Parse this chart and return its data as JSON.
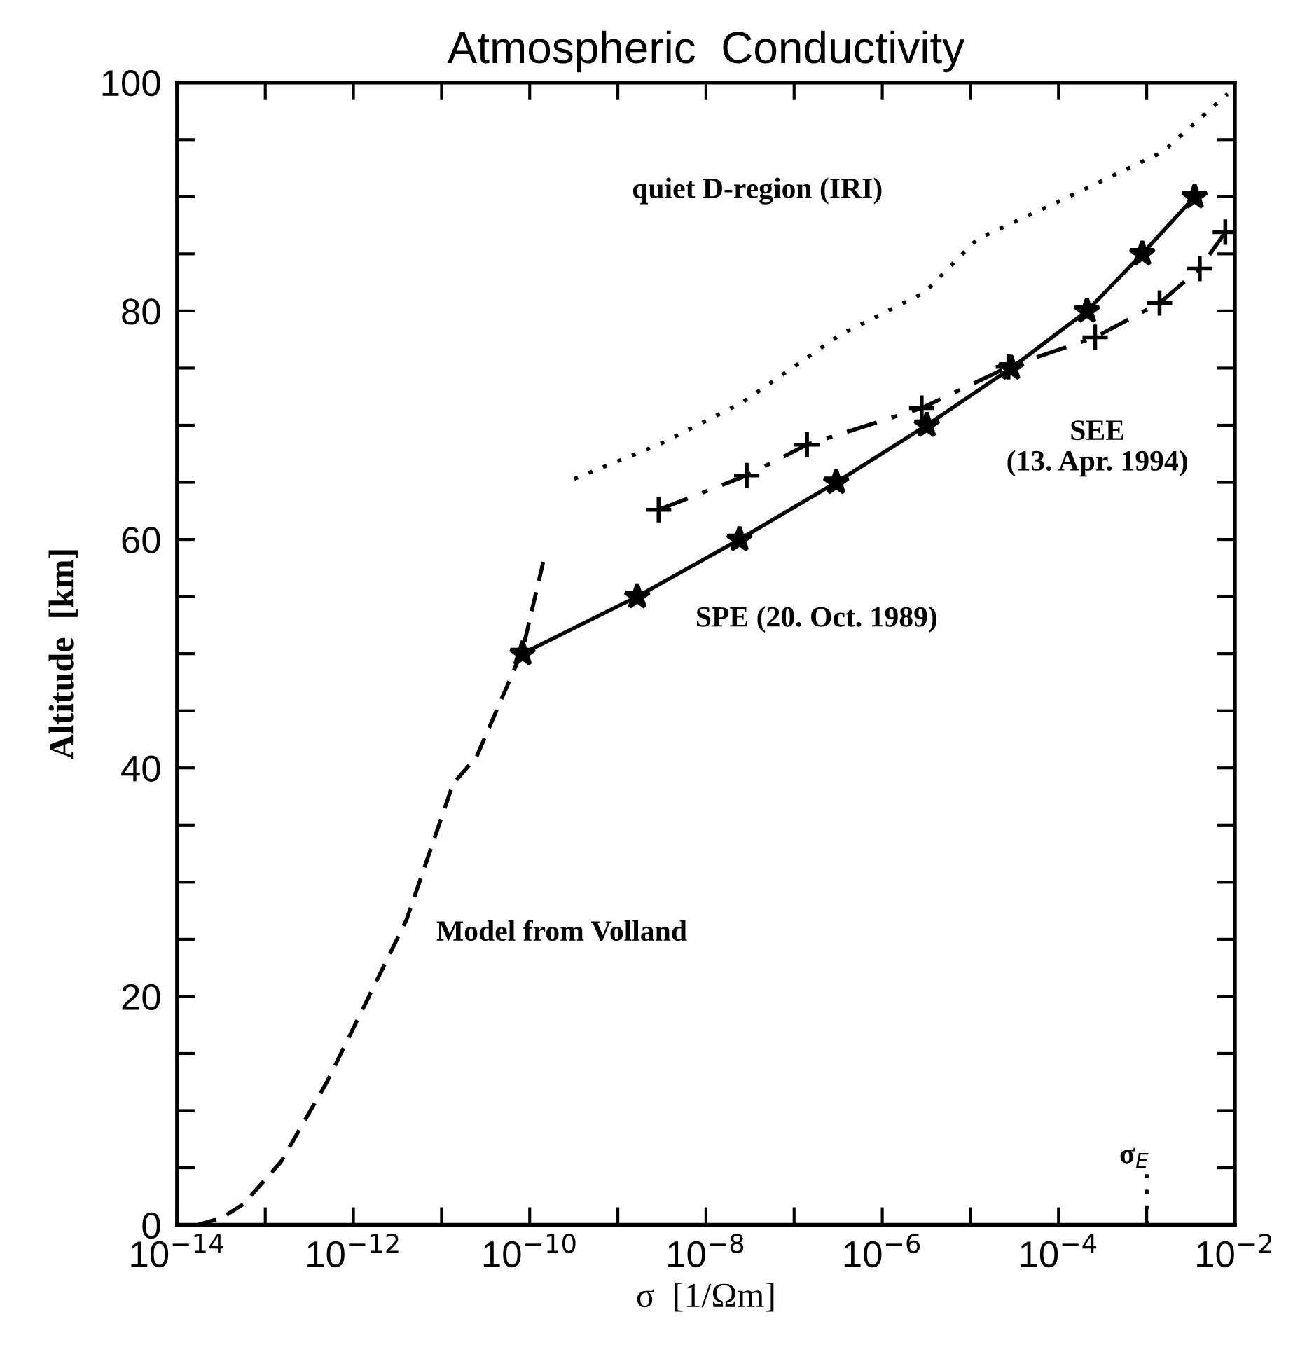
{
  "chart_data": {
    "type": "line",
    "title": "Atmospheric  Conductivity",
    "xlabel": "σ  [1/Ωm]",
    "ylabel": "Altitude  [km]",
    "log": "x",
    "xlim": [
      1e-14,
      0.01
    ],
    "ylim": [
      0,
      100
    ],
    "xticks": [
      {
        "value": 1e-14,
        "label": "10$^{−14}$"
      },
      {
        "value": 1e-13,
        "label": null
      },
      {
        "value": 1e-12,
        "label": "10$^{−12}$"
      },
      {
        "value": 1e-11,
        "label": null
      },
      {
        "value": 1e-10,
        "label": "10$^{−10}$"
      },
      {
        "value": 1e-09,
        "label": null
      },
      {
        "value": 1e-08,
        "label": "10$^{−8}$"
      },
      {
        "value": 1e-07,
        "label": null
      },
      {
        "value": 1e-06,
        "label": "10$^{−6}$"
      },
      {
        "value": 1e-05,
        "label": null
      },
      {
        "value": 0.0001,
        "label": "10$^{−4}$"
      },
      {
        "value": 0.001,
        "label": null
      },
      {
        "value": 0.01,
        "label": "10$^{−2}$"
      }
    ],
    "yticks": [
      0,
      {
        "value": 5,
        "label": null
      },
      {
        "value": 10,
        "label": null
      },
      {
        "value": 15,
        "label": null
      },
      20,
      {
        "value": 25,
        "label": null
      },
      {
        "value": 30,
        "label": null
      },
      {
        "value": 35,
        "label": null
      },
      40,
      {
        "value": 45,
        "label": null
      },
      {
        "value": 50,
        "label": null
      },
      {
        "value": 55,
        "label": null
      },
      60,
      {
        "value": 65,
        "label": null
      },
      {
        "value": 70,
        "label": null
      },
      {
        "value": 75,
        "label": null
      },
      80,
      {
        "value": 85,
        "label": null
      },
      {
        "value": 90,
        "label": null
      },
      {
        "value": 95,
        "label": null
      },
      100
    ],
    "grid": false,
    "legend": false,
    "annotations": [
      "quiet D-region (IRI)",
      "SPE (20. Oct. 1989)",
      "SEE\n(13. Apr. 1994)",
      "Model from Volland",
      "σ$_{E}$"
    ],
    "series": [
      {
        "color": "#000000",
        "line_style": "dotted",
        "marker": "none",
        "x": [
          3.2e-10,
          2.9e-09,
          2.6e-08,
          3.3e-07,
          3e-06,
          1.2e-05,
          7.9e-05,
          0.0015,
          0.0083
        ],
        "values": [
          65.3,
          68.3,
          72.0,
          77.9,
          81.6,
          86.3,
          89.2,
          93.9,
          99
        ]
      },
      {
        "color": "#000000",
        "line_style": "solid",
        "marker": "star",
        "x": [
          8.3e-11,
          1.66e-09,
          2.4e-08,
          3e-07,
          3.2e-06,
          2.9e-05,
          0.00021,
          0.00089,
          0.0035
        ],
        "values": [
          50,
          55,
          60,
          65,
          70,
          75,
          80,
          85,
          90
        ]
      },
      {
        "color": "#000000",
        "line_style": "dashdot",
        "marker": "cross",
        "x": [
          2.9e-09,
          2.9e-08,
          1.4e-07,
          2.8e-06,
          2.7e-05,
          0.00026,
          0.0014,
          0.004,
          0.0078
        ],
        "values": [
          62.6,
          65.6,
          68.3,
          71.5,
          75.1,
          77.7,
          80.7,
          83.7,
          86.9
        ]
      },
      {
        "color": "#000000",
        "line_style": "dashed",
        "marker": "none",
        "x": [
          1.7e-14,
          3.2e-14,
          5.6e-14,
          1.5e-13,
          5e-13,
          1.5e-12,
          4e-12,
          1.35e-11,
          2.5e-11,
          8.3e-11,
          1.45e-10
        ],
        "values": [
          0,
          0.6,
          1.8,
          5.5,
          12.5,
          20,
          26.7,
          38.6,
          41,
          50.3,
          58.3
        ]
      },
      {
        "color": "#000000",
        "line_style": "dotted",
        "marker": "none",
        "x": [
          0.001,
          0.001
        ],
        "values": [
          0,
          4.5
        ]
      }
    ]
  }
}
